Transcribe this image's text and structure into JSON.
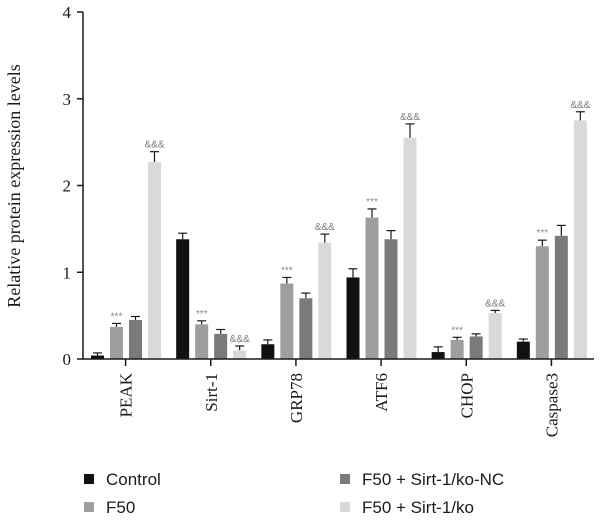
{
  "chart_data": {
    "type": "bar",
    "ylabel": "Relative protein expression levels",
    "ylim": [
      0,
      4
    ],
    "yticks": [
      0,
      1,
      2,
      3,
      4
    ],
    "categories": [
      "PEAK",
      "Sirt-1",
      "GRP78",
      "ATF6",
      "CHOP",
      "Caspase3"
    ],
    "legend_position": "bottom",
    "series": [
      {
        "name": "Control",
        "color": "#111111",
        "values": [
          0.04,
          1.38,
          0.17,
          0.94,
          0.08,
          0.2
        ],
        "errors": [
          0.03,
          0.07,
          0.05,
          0.1,
          0.06,
          0.03
        ],
        "marks": [
          "",
          "",
          "",
          "",
          "",
          ""
        ]
      },
      {
        "name": "F50",
        "color": "#9e9e9e",
        "values": [
          0.37,
          0.4,
          0.87,
          1.63,
          0.22,
          1.3
        ],
        "errors": [
          0.04,
          0.04,
          0.07,
          0.1,
          0.03,
          0.07
        ],
        "marks": [
          "***",
          "***",
          "***",
          "***",
          "***",
          "***"
        ]
      },
      {
        "name": "F50 + Sirt-1/ko-NC",
        "color": "#7a7a7a",
        "values": [
          0.45,
          0.29,
          0.7,
          1.38,
          0.26,
          1.42
        ],
        "errors": [
          0.04,
          0.05,
          0.06,
          0.1,
          0.03,
          0.12
        ],
        "marks": [
          "",
          "",
          "",
          "",
          "",
          ""
        ]
      },
      {
        "name": "F50 + Sirt-1/ko",
        "color": "#d9d9d9",
        "values": [
          2.27,
          0.1,
          1.34,
          2.55,
          0.53,
          2.75
        ],
        "errors": [
          0.12,
          0.05,
          0.1,
          0.16,
          0.03,
          0.1
        ],
        "marks": [
          "&&&",
          "&&&",
          "&&&",
          "&&&",
          "&&&",
          "&&&"
        ]
      }
    ]
  }
}
